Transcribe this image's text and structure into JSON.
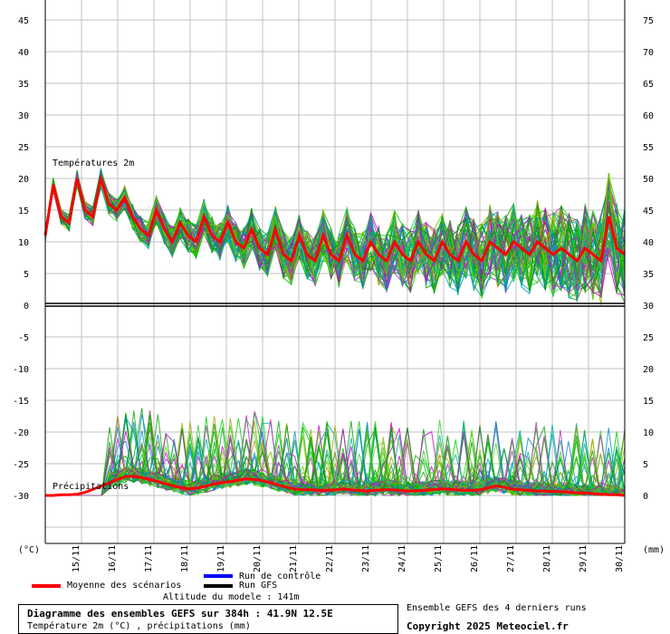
{
  "chart_data": {
    "type": "line",
    "temperature": {
      "label": "Températures 2m",
      "left_ticks": [
        "45",
        "40",
        "35",
        "30",
        "25",
        "20",
        "15",
        "10",
        "5",
        "0"
      ],
      "right_ticks": [
        "75",
        "70",
        "65",
        "60",
        "55",
        "50",
        "45",
        "40",
        "35",
        "30"
      ],
      "mean_series": [
        11,
        19,
        14,
        13,
        20,
        15,
        14,
        20,
        16,
        15,
        17,
        14,
        12,
        11,
        15,
        12,
        10,
        13,
        11,
        10,
        14,
        11,
        10,
        13,
        10,
        9,
        12,
        9,
        8,
        12,
        8,
        7,
        11,
        8,
        7,
        11,
        8,
        7,
        11,
        8,
        7,
        10,
        8,
        7,
        10,
        8,
        7,
        10,
        8,
        7,
        10,
        8,
        7,
        10,
        8,
        7,
        10,
        9,
        8,
        10,
        9,
        8,
        10,
        9,
        8,
        9,
        8,
        7,
        9,
        8,
        7,
        14,
        9,
        8
      ]
    },
    "precipitation": {
      "label": "Précipitations",
      "left_ticks": [
        "-5",
        "-10",
        "-15",
        "-20",
        "-25",
        "-30"
      ],
      "right_ticks": [
        "25",
        "20",
        "15",
        "10",
        "5",
        "0"
      ],
      "mean_series": [
        0,
        0,
        0.1,
        0.1,
        0.2,
        0.5,
        1,
        1.5,
        2,
        2.5,
        3,
        3,
        2.8,
        2.5,
        2.2,
        1.8,
        1.5,
        1.2,
        1,
        1.2,
        1.5,
        1.8,
        2,
        2.2,
        2.4,
        2.6,
        2.5,
        2.3,
        2,
        1.6,
        1.3,
        1,
        0.9,
        0.9,
        0.8,
        0.8,
        0.9,
        1,
        0.9,
        0.8,
        0.7,
        0.8,
        0.9,
        0.9,
        0.8,
        0.7,
        0.7,
        0.8,
        0.9,
        1,
        1,
        0.9,
        0.8,
        0.8,
        0.9,
        1.2,
        1.5,
        1.3,
        1,
        0.9,
        0.8,
        0.7,
        0.7,
        0.6,
        0.6,
        0.5,
        0.4,
        0.4,
        0.3,
        0.2,
        0.1,
        0.1,
        0
      ]
    },
    "x_ticks": [
      "15/11",
      "16/11",
      "17/11",
      "18/11",
      "19/11",
      "20/11",
      "21/11",
      "22/11",
      "23/11",
      "24/11",
      "25/11",
      "26/11",
      "27/11",
      "28/11",
      "29/11",
      "30/11"
    ],
    "left_unit": "(°C)",
    "right_unit": "(mm)",
    "grid": true,
    "colors": {
      "mean": "#ff0000",
      "control": "#0000ff",
      "gfs": "#000000",
      "ensemble": "#00cc00"
    }
  },
  "legend": {
    "control": "Run de contrôle",
    "gfs": "Run GFS",
    "mean": "Moyenne des scénarios",
    "altitude": "Altitude du modele : 141m"
  },
  "info": {
    "title": "Diagramme des ensembles GEFS sur 384h : 41.9N 12.5E",
    "subtitle": "Température 2m (°C) , précipitations (mm)"
  },
  "note": "Ensemble GEFS des 4 derniers runs",
  "copyright": "Copyright 2025 Meteociel.fr"
}
